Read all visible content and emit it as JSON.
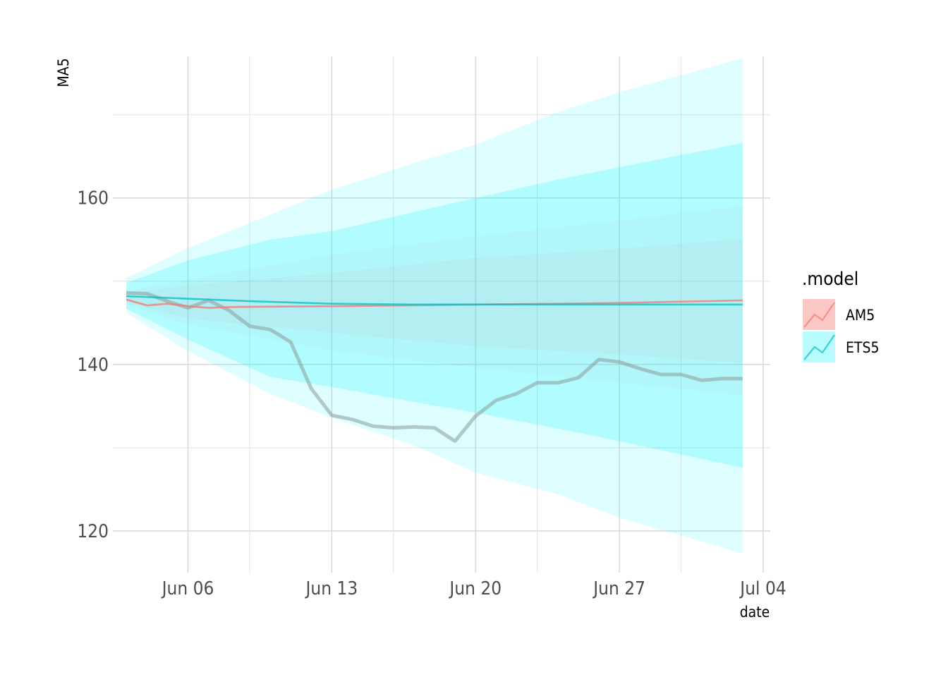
{
  "chart_data": {
    "type": "line",
    "xlabel": "date",
    "ylabel": "MA5",
    "x_ticks": [
      {
        "date": "2020-06-06",
        "label": "Jun 06"
      },
      {
        "date": "2020-06-13",
        "label": "Jun 13"
      },
      {
        "date": "2020-06-20",
        "label": "Jun 20"
      },
      {
        "date": "2020-06-27",
        "label": "Jun 27"
      },
      {
        "date": "2020-07-04",
        "label": "Jul 04"
      }
    ],
    "y_ticks": [
      120,
      140,
      160
    ],
    "xlim": [
      "2020-06-02",
      "2020-07-04"
    ],
    "ylim": [
      115,
      177
    ],
    "grid": true,
    "legend": {
      "title": ".model",
      "position": "right"
    },
    "actual": {
      "color": "#8a9a9a",
      "x": [
        "2020-06-03",
        "2020-06-04",
        "2020-06-05",
        "2020-06-06",
        "2020-06-07",
        "2020-06-08",
        "2020-06-09",
        "2020-06-10",
        "2020-06-11",
        "2020-06-12",
        "2020-06-13",
        "2020-06-14",
        "2020-06-15",
        "2020-06-16",
        "2020-06-17",
        "2020-06-18",
        "2020-06-19",
        "2020-06-20",
        "2020-06-21",
        "2020-06-22",
        "2020-06-23",
        "2020-06-24",
        "2020-06-25",
        "2020-06-26",
        "2020-06-27",
        "2020-06-28",
        "2020-06-29",
        "2020-06-30",
        "2020-07-01",
        "2020-07-02",
        "2020-07-03"
      ],
      "values": [
        148.6,
        148.5,
        147.6,
        146.8,
        147.7,
        146.5,
        144.6,
        144.2,
        142.7,
        137.1,
        133.9,
        133.4,
        132.6,
        132.4,
        132.5,
        132.4,
        130.8,
        133.8,
        135.7,
        136.5,
        137.8,
        137.8,
        138.4,
        140.6,
        140.3,
        139.5,
        138.8,
        138.8,
        138.1,
        138.3,
        138.3
      ]
    },
    "series": [
      {
        "name": "AM5",
        "color": "#f8766d",
        "x": [
          "2020-06-03",
          "2020-06-04",
          "2020-06-05",
          "2020-06-06",
          "2020-06-07",
          "2020-06-08",
          "2020-06-10",
          "2020-06-13",
          "2020-06-17",
          "2020-06-20",
          "2020-06-24",
          "2020-06-27",
          "2020-07-03"
        ],
        "values": [
          147.8,
          147.1,
          147.3,
          147.0,
          146.8,
          146.9,
          146.95,
          147.0,
          147.1,
          147.2,
          147.3,
          147.4,
          147.7
        ],
        "intervals": [
          {
            "level": 80,
            "x": [
              "2020-06-03",
              "2020-06-06",
              "2020-06-13",
              "2020-06-20",
              "2020-06-27",
              "2020-07-03"
            ],
            "lower": [
              147.5,
              145.5,
              143.8,
              142.2,
              141.2,
              140.2
            ],
            "upper": [
              148.5,
              149.5,
              151.0,
              152.8,
              153.9,
              155.1
            ]
          },
          {
            "level": 95,
            "x": [
              "2020-06-03",
              "2020-06-06",
              "2020-06-13",
              "2020-06-20",
              "2020-06-27",
              "2020-07-03"
            ],
            "lower": [
              147.2,
              144.8,
              141.7,
              139.6,
              137.8,
              136.3
            ],
            "upper": [
              148.8,
              150.2,
              153.2,
              155.4,
              157.3,
              159.0
            ]
          }
        ]
      },
      {
        "name": "ETS5",
        "color": "#00bfc4",
        "x": [
          "2020-06-03",
          "2020-06-06",
          "2020-06-09",
          "2020-06-13",
          "2020-06-17",
          "2020-06-20",
          "2020-06-27",
          "2020-07-03"
        ],
        "values": [
          148.2,
          147.9,
          147.6,
          147.3,
          147.2,
          147.2,
          147.2,
          147.2
        ],
        "intervals": [
          {
            "level": 80,
            "x": [
              "2020-06-03",
              "2020-06-06",
              "2020-06-10",
              "2020-06-13",
              "2020-06-17",
              "2020-06-20",
              "2020-06-24",
              "2020-06-27",
              "2020-07-03"
            ],
            "lower": [
              146.7,
              143.0,
              138.5,
              137.3,
              135.5,
              134.2,
              132.3,
              130.8,
              127.6
            ],
            "upper": [
              149.8,
              152.5,
              155.0,
              156.0,
              158.3,
              160.0,
              162.2,
              163.7,
              166.6
            ]
          },
          {
            "level": 95,
            "x": [
              "2020-06-03",
              "2020-06-06",
              "2020-06-10",
              "2020-06-13",
              "2020-06-17",
              "2020-06-20",
              "2020-06-24",
              "2020-06-27",
              "2020-07-03"
            ],
            "lower": [
              146.2,
              141.6,
              136.5,
              133.6,
              130.3,
              127.0,
              124.4,
              121.6,
              117.3
            ],
            "upper": [
              150.4,
              154.0,
              158.0,
              161.0,
              164.2,
              166.4,
              170.3,
              172.7,
              176.8
            ]
          }
        ]
      }
    ]
  }
}
